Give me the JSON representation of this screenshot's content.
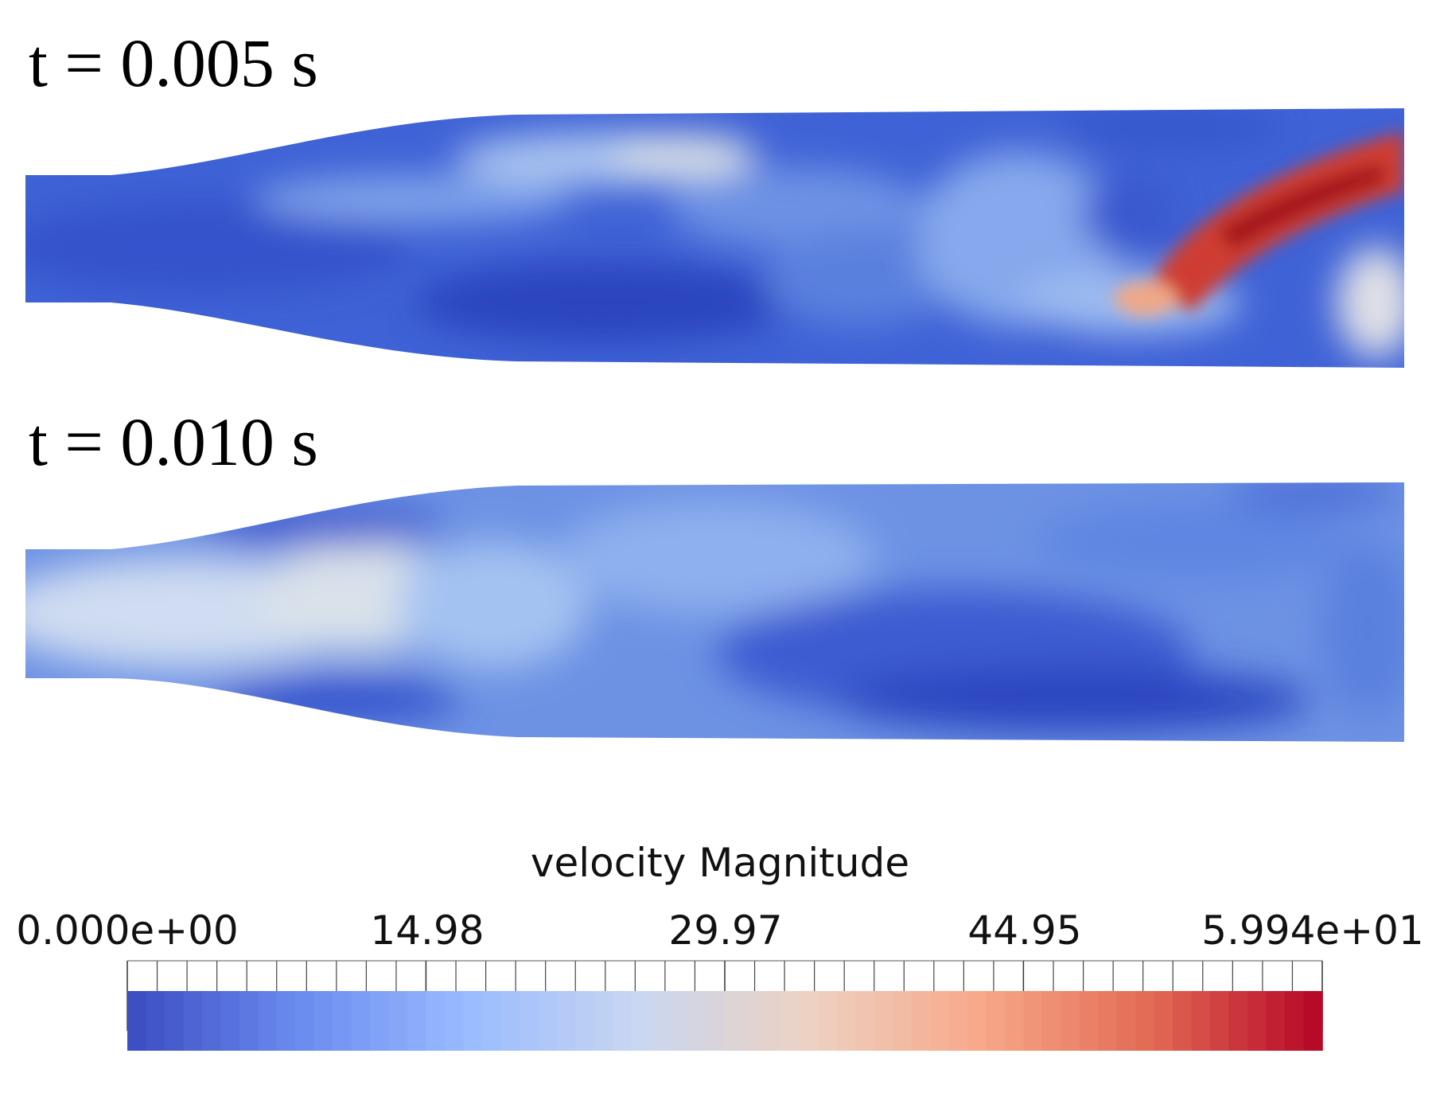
{
  "panels": [
    {
      "label": "t = 0.005 s"
    },
    {
      "label": "t = 0.010 s"
    }
  ],
  "colorbar": {
    "title": "velocity Magnitude",
    "range": [
      0,
      59.94
    ],
    "tick_labels": [
      "0.000e+00",
      "14.98",
      "29.97",
      "44.95",
      "5.994e+01"
    ],
    "tick_values": [
      0,
      14.98,
      29.97,
      44.95,
      59.94
    ],
    "colormap": [
      "#3b4cc0",
      "#6a8bef",
      "#9abbff",
      "#c9d7f0",
      "#edd1c2",
      "#f7a889",
      "#e26a53",
      "#b40426"
    ]
  },
  "colors": {
    "dark_blue": "#3350c8",
    "mid_blue": "#5f86e2",
    "light_blue": "#a8c8f2",
    "pale": "#dfe4ea",
    "red": "#c8342c",
    "dark_red": "#a8161f"
  }
}
